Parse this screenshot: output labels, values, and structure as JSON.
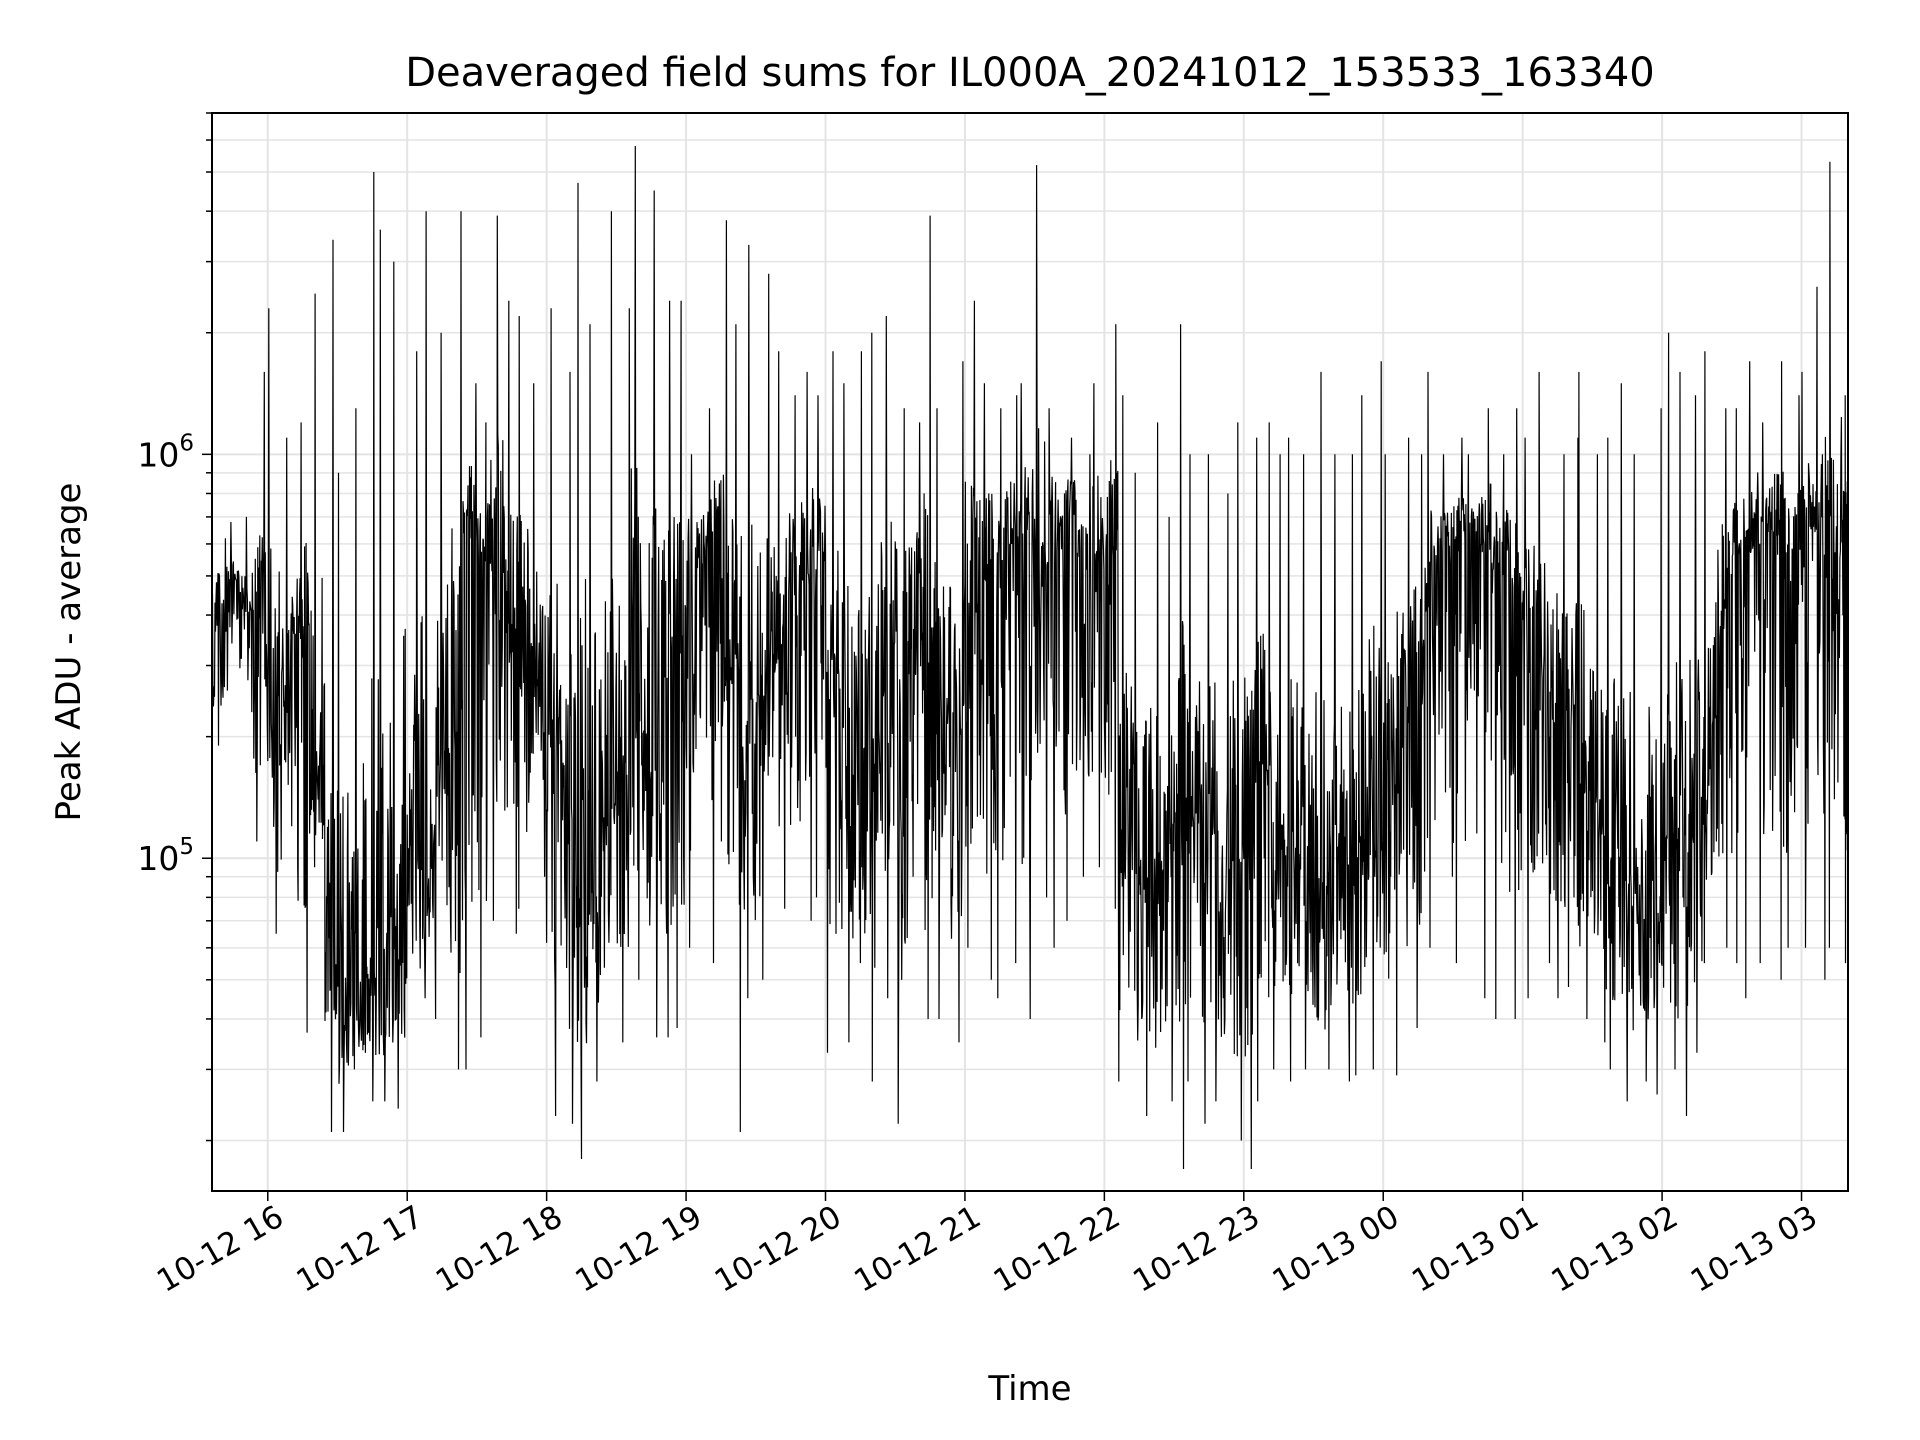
{
  "chart_data": {
    "type": "line",
    "title": "Deaveraged field sums for IL000A_20241012_153533_163340",
    "xlabel": "Time",
    "ylabel": "Peak ADU - average",
    "yscale": "log",
    "ylim": [
      15000,
      7000000
    ],
    "xlim": [
      "2024-10-12 15:36",
      "2024-10-13 03:20"
    ],
    "grid": true,
    "line_color": "#000000",
    "xticks": [
      {
        "t": "2024-10-12 16:00",
        "label": "10-12 16"
      },
      {
        "t": "2024-10-12 17:00",
        "label": "10-12 17"
      },
      {
        "t": "2024-10-12 18:00",
        "label": "10-12 18"
      },
      {
        "t": "2024-10-12 19:00",
        "label": "10-12 19"
      },
      {
        "t": "2024-10-12 20:00",
        "label": "10-12 20"
      },
      {
        "t": "2024-10-12 21:00",
        "label": "10-12 21"
      },
      {
        "t": "2024-10-12 22:00",
        "label": "10-12 22"
      },
      {
        "t": "2024-10-12 23:00",
        "label": "10-12 23"
      },
      {
        "t": "2024-10-13 00:00",
        "label": "10-13 00"
      },
      {
        "t": "2024-10-13 01:00",
        "label": "10-13 01"
      },
      {
        "t": "2024-10-13 02:00",
        "label": "10-13 02"
      },
      {
        "t": "2024-10-13 03:00",
        "label": "10-13 03"
      }
    ],
    "yticks": [
      {
        "v": 100000,
        "base": "10",
        "exp": "5"
      },
      {
        "v": 1000000,
        "base": "10",
        "exp": "6"
      }
    ],
    "series": [
      {
        "x": [
          "2024-10-12 15:36",
          "2024-10-12 15:42",
          "2024-10-12 15:48",
          "2024-10-12 15:54",
          "2024-10-12 16:00",
          "2024-10-12 16:06",
          "2024-10-12 16:12",
          "2024-10-12 16:18",
          "2024-10-12 16:24",
          "2024-10-12 16:30",
          "2024-10-12 16:36",
          "2024-10-12 16:42",
          "2024-10-12 16:48",
          "2024-10-12 16:54",
          "2024-10-12 17:00",
          "2024-10-12 17:06",
          "2024-10-12 17:12",
          "2024-10-12 17:18",
          "2024-10-12 17:24",
          "2024-10-12 17:30",
          "2024-10-12 17:36",
          "2024-10-12 17:42",
          "2024-10-12 17:48",
          "2024-10-12 17:54",
          "2024-10-12 18:00",
          "2024-10-12 18:06",
          "2024-10-12 18:12",
          "2024-10-12 18:18",
          "2024-10-12 18:24",
          "2024-10-12 18:30",
          "2024-10-12 18:36",
          "2024-10-12 18:42",
          "2024-10-12 18:48",
          "2024-10-12 18:54",
          "2024-10-12 19:00",
          "2024-10-12 19:06",
          "2024-10-12 19:12",
          "2024-10-12 19:18",
          "2024-10-12 19:24",
          "2024-10-12 19:30",
          "2024-10-12 19:36",
          "2024-10-12 19:42",
          "2024-10-12 19:48",
          "2024-10-12 19:54",
          "2024-10-12 20:00",
          "2024-10-12 20:06",
          "2024-10-12 20:12",
          "2024-10-12 20:18",
          "2024-10-12 20:24",
          "2024-10-12 20:30",
          "2024-10-12 20:36",
          "2024-10-12 20:42",
          "2024-10-12 20:48",
          "2024-10-12 20:54",
          "2024-10-12 21:00",
          "2024-10-12 21:06",
          "2024-10-12 21:12",
          "2024-10-12 21:18",
          "2024-10-12 21:24",
          "2024-10-12 21:30",
          "2024-10-12 21:36",
          "2024-10-12 21:42",
          "2024-10-12 21:48",
          "2024-10-12 21:54",
          "2024-10-12 22:00",
          "2024-10-12 22:06",
          "2024-10-12 22:12",
          "2024-10-12 22:18",
          "2024-10-12 22:24",
          "2024-10-12 22:30",
          "2024-10-12 22:36",
          "2024-10-12 22:42",
          "2024-10-12 22:48",
          "2024-10-12 22:54",
          "2024-10-12 23:00",
          "2024-10-12 23:06",
          "2024-10-12 23:12",
          "2024-10-12 23:18",
          "2024-10-12 23:24",
          "2024-10-12 23:30",
          "2024-10-12 23:36",
          "2024-10-12 23:42",
          "2024-10-12 23:48",
          "2024-10-12 23:54",
          "2024-10-13 00:00",
          "2024-10-13 00:06",
          "2024-10-13 00:12",
          "2024-10-13 00:18",
          "2024-10-13 00:24",
          "2024-10-13 00:30",
          "2024-10-13 00:36",
          "2024-10-13 00:42",
          "2024-10-13 00:48",
          "2024-10-13 00:54",
          "2024-10-13 01:00",
          "2024-10-13 01:06",
          "2024-10-13 01:12",
          "2024-10-13 01:18",
          "2024-10-13 01:24",
          "2024-10-13 01:30",
          "2024-10-13 01:36",
          "2024-10-13 01:42",
          "2024-10-13 01:48",
          "2024-10-13 01:54",
          "2024-10-13 02:00",
          "2024-10-13 02:06",
          "2024-10-13 02:12",
          "2024-10-13 02:18",
          "2024-10-13 02:24",
          "2024-10-13 02:30",
          "2024-10-13 02:36",
          "2024-10-13 02:42",
          "2024-10-13 02:48",
          "2024-10-13 02:54",
          "2024-10-13 03:00",
          "2024-10-13 03:06",
          "2024-10-13 03:12",
          "2024-10-13 03:18"
        ],
        "y_low": [
          190000,
          260000,
          230000,
          110000,
          65000,
          120000,
          37000,
          95000,
          21000,
          21000,
          30000,
          25000,
          25000,
          24000,
          40000,
          45000,
          40000,
          30000,
          30000,
          36000,
          70000,
          65000,
          75000,
          90000,
          23000,
          22000,
          18000,
          28000,
          22000,
          35000,
          50000,
          36000,
          36000,
          38000,
          60000,
          55000,
          110000,
          21000,
          45000,
          50000,
          120000,
          75000,
          70000,
          80000,
          33000,
          35000,
          30000,
          28000,
          45000,
          22000,
          90000,
          40000,
          40000,
          35000,
          60000,
          50000,
          45000,
          55000,
          40000,
          80000,
          60000,
          70000,
          90000,
          95000,
          75000,
          28000,
          25000,
          23000,
          25000,
          17000,
          28000,
          22000,
          25000,
          20000,
          17000,
          25000,
          30000,
          28000,
          30000,
          27000,
          30000,
          28000,
          29000,
          30000,
          29000,
          35000,
          38000,
          60000,
          90000,
          55000,
          60000,
          45000,
          40000,
          40000,
          45000,
          55000,
          45000,
          48000,
          40000,
          35000,
          30000,
          25000,
          28000,
          26000,
          30000,
          23000,
          33000,
          55000,
          60000,
          55000,
          45000,
          55000,
          50000,
          60000,
          60000,
          50000,
          60000,
          55000
        ],
        "y_base": [
          450000,
          500000,
          420000,
          520000,
          250000,
          300000,
          400000,
          180000,
          70000,
          55000,
          50000,
          60000,
          60000,
          100000,
          110000,
          130000,
          200000,
          250000,
          700000,
          600000,
          650000,
          400000,
          350000,
          300000,
          250000,
          150000,
          120000,
          160000,
          150000,
          200000,
          300000,
          250000,
          350000,
          400000,
          550000,
          600000,
          500000,
          350000,
          250000,
          300000,
          400000,
          500000,
          550000,
          600000,
          350000,
          300000,
          200000,
          200000,
          350000,
          400000,
          450000,
          300000,
          250000,
          300000,
          500000,
          550000,
          600000,
          650000,
          700000,
          650000,
          700000,
          750000,
          600000,
          650000,
          600000,
          120000,
          100000,
          90000,
          120000,
          150000,
          160000,
          130000,
          100000,
          110000,
          150000,
          180000,
          130000,
          120000,
          100000,
          90000,
          110000,
          100000,
          120000,
          150000,
          180000,
          250000,
          350000,
          450000,
          600000,
          650000,
          700000,
          650000,
          600000,
          500000,
          450000,
          350000,
          300000,
          250000,
          200000,
          150000,
          120000,
          100000,
          90000,
          100000,
          130000,
          120000,
          150000,
          250000,
          450000,
          600000,
          650000,
          700000,
          650000,
          650000,
          700000,
          650000,
          600000,
          650000
        ],
        "y_high": [
          620000,
          680000,
          700000,
          1600000,
          2300000,
          1100000,
          1200000,
          2500000,
          3400000,
          900000,
          1300000,
          5000000,
          3600000,
          3000000,
          1800000,
          4000000,
          2000000,
          4000000,
          1500000,
          1200000,
          3900000,
          2400000,
          2200000,
          1500000,
          2300000,
          1600000,
          4700000,
          2100000,
          4000000,
          2300000,
          5800000,
          4500000,
          2400000,
          2400000,
          1000000,
          1300000,
          3800000,
          2100000,
          3300000,
          2800000,
          1800000,
          1400000,
          1600000,
          1400000,
          1800000,
          1500000,
          1800000,
          2000000,
          2200000,
          1300000,
          1200000,
          3900000,
          1300000,
          1700000,
          2400000,
          1500000,
          1300000,
          1400000,
          1500000,
          5200000,
          1300000,
          1100000,
          1000000,
          1500000,
          2100000,
          1400000,
          900000,
          1200000,
          700000,
          2100000,
          1000000,
          1000000,
          800000,
          1200000,
          1100000,
          1200000,
          1000000,
          1100000,
          1000000,
          1600000,
          1000000,
          1000000,
          1400000,
          1700000,
          1000000,
          1100000,
          1000000,
          1600000,
          1000000,
          1100000,
          1000000,
          1300000,
          1000000,
          1300000,
          1100000,
          1600000,
          1000000,
          1100000,
          1600000,
          1000000,
          1100000,
          1500000,
          1000000,
          1300000,
          2000000,
          1600000,
          1400000,
          1800000,
          1300000,
          1300000,
          1700000,
          1200000,
          1700000,
          1400000,
          1600000,
          2600000,
          5300000,
          1400000
        ]
      }
    ]
  }
}
